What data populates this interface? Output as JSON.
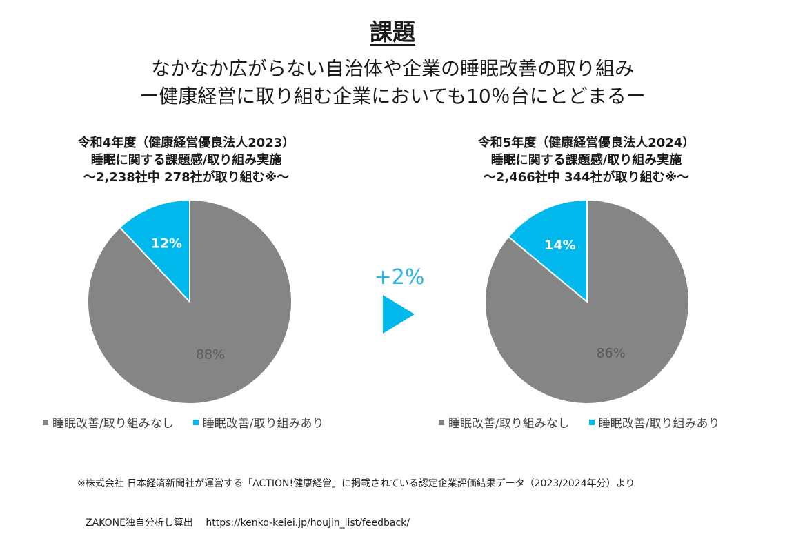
{
  "title": "課題",
  "subtitle_line1": "なかなか広がらない自治体や企業の睡眠改善の取り組み",
  "subtitle_line2": "ー健康経営に取り組む企業においても10％台にとどまるー",
  "comparison": {
    "delta_label": "+2%"
  },
  "colors": {
    "no": "#858585",
    "yes": "#00b8eb"
  },
  "legend": {
    "no": "睡眠改善/取り組みなし",
    "yes": "睡眠改善/取り組みあり"
  },
  "chart_data": [
    {
      "type": "pie",
      "header_line1": "令和4年度（健康経営優良法人2023）",
      "header_line2": "睡眠に関する課題感/取り組み実施",
      "header_line3": "～2,238社中 278社が取り組む※～",
      "slices": [
        {
          "label": "睡眠改善/取り組みあり",
          "value": 12,
          "display": "12%"
        },
        {
          "label": "睡眠改善/取り組みなし",
          "value": 88,
          "display": "88%"
        }
      ]
    },
    {
      "type": "pie",
      "header_line1": "令和5年度（健康経営優良法人2024）",
      "header_line2": "睡眠に関する課題感/取り組み実施",
      "header_line3": "～2,466社中 344社が取り組む※～",
      "slices": [
        {
          "label": "睡眠改善/取り組みあり",
          "value": 14,
          "display": "14%"
        },
        {
          "label": "睡眠改善/取り組みなし",
          "value": 86,
          "display": "86%"
        }
      ]
    }
  ],
  "footnote_line1": "※株式会社 日本経済新聞社が運営する「ACTION!健康経営」に掲載されている認定企業評価結果データ（2023/2024年分）より",
  "footnote_line2": "ZAKONE独自分析し算出　 https://kenko-keiei.jp/houjin_list/feedback/"
}
